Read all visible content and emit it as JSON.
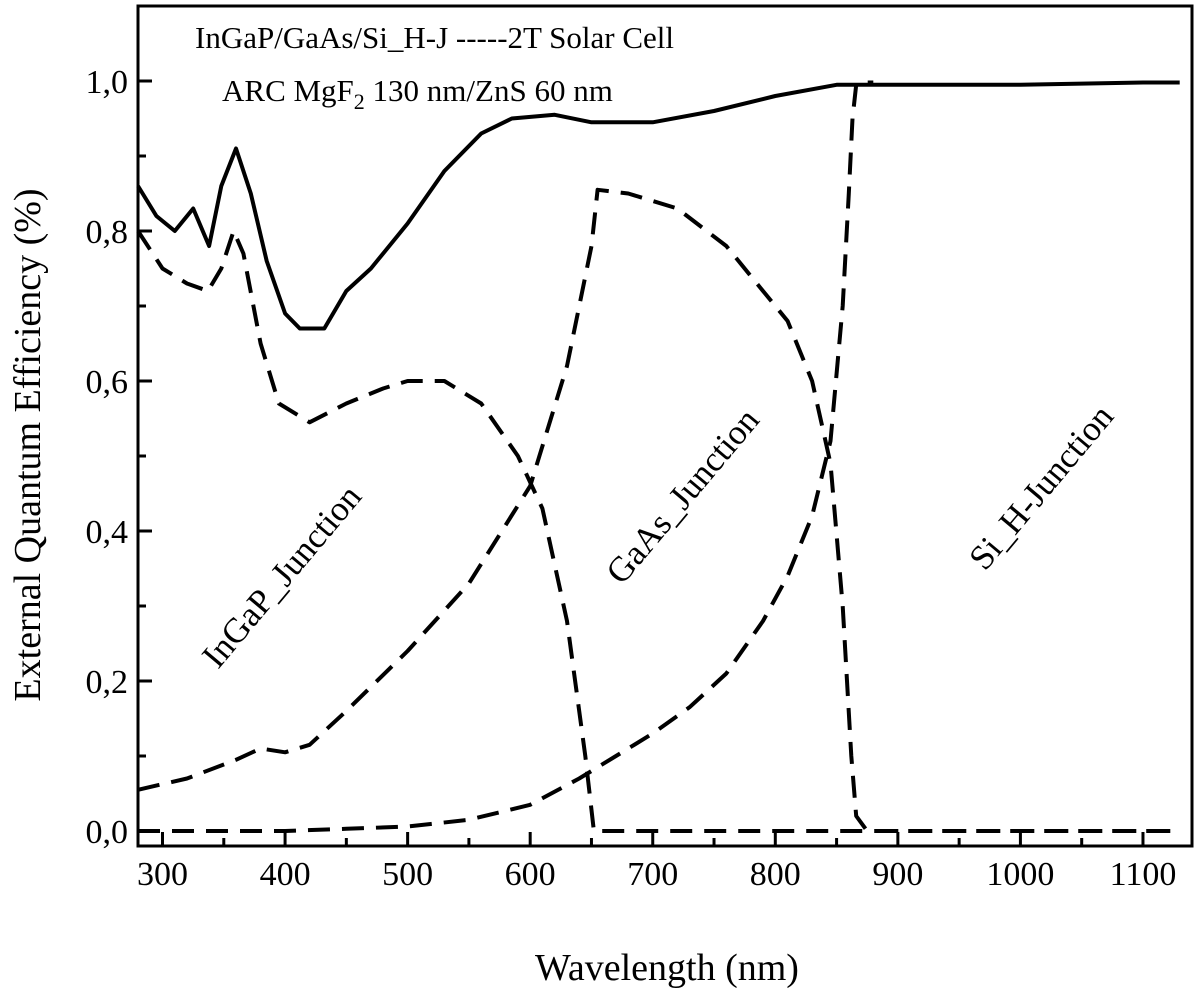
{
  "chart_data": {
    "type": "line",
    "title": "InGaP/GaAs/Si_H-J -----2T Solar Cell",
    "subtitle": {
      "prefix": "ARC MgF",
      "subscript": "2",
      "suffix": " 130 nm/ZnS 60 nm"
    },
    "xlabel": "Wavelength (nm)",
    "ylabel": "External Quantum Efficiency (%)",
    "xlim": [
      280,
      1140
    ],
    "ylim": [
      -0.02,
      1.1
    ],
    "x_ticks": [
      300,
      400,
      500,
      600,
      700,
      800,
      900,
      1000,
      1100
    ],
    "x_tick_labels": [
      "300",
      "400",
      "500",
      "600",
      "700",
      "800",
      "900",
      "1000",
      "1100"
    ],
    "y_ticks": [
      0.0,
      0.2,
      0.4,
      0.6,
      0.8,
      1.0
    ],
    "y_tick_labels": [
      "0,0",
      "0,2",
      "0,4",
      "0,6",
      "0,8",
      "1,0"
    ],
    "grid": false,
    "annotations": [
      "InGaP_Junction",
      "GaAs_Junction",
      "Si_H-Junction"
    ],
    "series": [
      {
        "style": "solid",
        "x": [
          280,
          295,
          310,
          325,
          338,
          348,
          360,
          372,
          385,
          400,
          412,
          432,
          450,
          470,
          500,
          530,
          560,
          585,
          620,
          650,
          700,
          750,
          800,
          850,
          900,
          1000,
          1100,
          1130
        ],
        "y": [
          0.86,
          0.82,
          0.8,
          0.83,
          0.78,
          0.86,
          0.91,
          0.85,
          0.76,
          0.69,
          0.67,
          0.67,
          0.72,
          0.75,
          0.81,
          0.88,
          0.93,
          0.95,
          0.955,
          0.945,
          0.945,
          0.96,
          0.98,
          0.995,
          0.995,
          0.995,
          0.998,
          0.998
        ]
      },
      {
        "style": "dashed",
        "x": [
          280,
          300,
          320,
          337,
          348,
          358,
          366,
          380,
          395,
          420,
          450,
          480,
          500,
          530,
          560,
          590,
          610,
          630,
          645,
          652,
          660,
          900,
          1130
        ],
        "y": [
          0.8,
          0.75,
          0.73,
          0.72,
          0.75,
          0.8,
          0.77,
          0.65,
          0.57,
          0.545,
          0.57,
          0.59,
          0.6,
          0.6,
          0.57,
          0.5,
          0.43,
          0.28,
          0.1,
          0.0,
          0.0,
          0.0,
          0.0
        ]
      },
      {
        "style": "dashed",
        "x": [
          280,
          320,
          360,
          380,
          400,
          420,
          450,
          500,
          550,
          600,
          630,
          650,
          655,
          680,
          720,
          760,
          790,
          810,
          830,
          845,
          855,
          862,
          866,
          875,
          1130
        ],
        "y": [
          0.055,
          0.07,
          0.095,
          0.11,
          0.105,
          0.115,
          0.16,
          0.24,
          0.33,
          0.46,
          0.62,
          0.78,
          0.855,
          0.85,
          0.83,
          0.78,
          0.72,
          0.68,
          0.6,
          0.49,
          0.3,
          0.1,
          0.02,
          0.0,
          0.0
        ]
      },
      {
        "style": "dashed",
        "x": [
          280,
          350,
          400,
          450,
          500,
          550,
          600,
          640,
          670,
          700,
          730,
          760,
          790,
          810,
          830,
          845,
          855,
          860,
          863,
          866,
          870,
          880
        ],
        "y": [
          0.0,
          0.0,
          0.0,
          0.003,
          0.006,
          0.015,
          0.035,
          0.07,
          0.1,
          0.13,
          0.165,
          0.21,
          0.28,
          0.34,
          0.42,
          0.52,
          0.7,
          0.85,
          0.95,
          0.995,
          0.998,
          0.998
        ]
      }
    ]
  }
}
